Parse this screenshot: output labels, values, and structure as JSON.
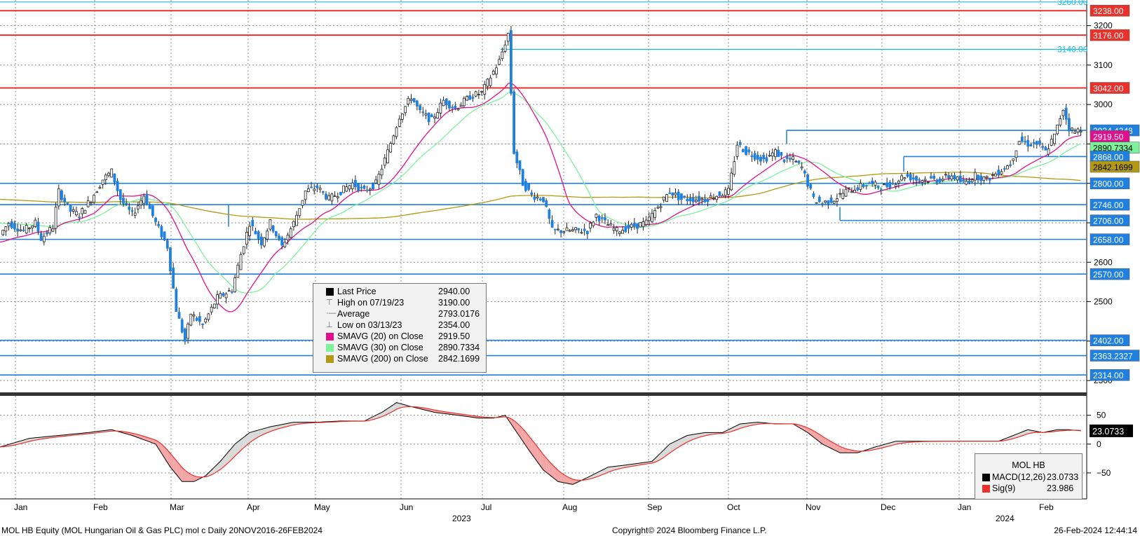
{
  "chart_data": [
    {
      "type": "candlestick",
      "title": "",
      "y_axis_ticks": [
        2300,
        2400,
        2500,
        2600,
        2700,
        2800,
        2900,
        3000,
        3100,
        3200
      ],
      "ylim": [
        2270,
        3265
      ],
      "x_labels": [
        "Jan",
        "Feb",
        "Mar",
        "Apr",
        "May",
        "Jun",
        "Jul",
        "Aug",
        "Sep",
        "Oct",
        "Nov",
        "Dec",
        "Jan",
        "Feb"
      ],
      "year_labels": [
        {
          "label": "2023",
          "after_month_index": 5
        },
        {
          "label": "2024",
          "after_month_index": 12
        }
      ],
      "horizontal_levels_red": [
        3238.0,
        3176.0,
        3042.0
      ],
      "horizontal_levels_blue": [
        2934.4348,
        2868.0,
        2800.0,
        2746.0,
        2706.0,
        2658.0,
        2570.0,
        2402.0,
        2363.2327,
        2314.0
      ],
      "cyan_levels": [
        {
          "value": 3260.0,
          "label": "3260.00"
        },
        {
          "value": 3140.0,
          "label": "3140.00"
        }
      ],
      "right_tags": [
        {
          "label": "3238.00",
          "value": 3238.0,
          "color": "#e8322b",
          "text_color": "#ffffff"
        },
        {
          "label": "3176.00",
          "value": 3176.0,
          "color": "#e8322b",
          "text_color": "#ffffff"
        },
        {
          "label": "3042.00",
          "value": 3042.0,
          "color": "#e8322b",
          "text_color": "#ffffff"
        },
        {
          "label": "2934.4348",
          "value": 2934.4348,
          "color": "#1f80e0",
          "text_color": "#ffffff"
        },
        {
          "label": "2919.50",
          "value": 2919.5,
          "color": "#e0108c",
          "text_color": "#ffffff"
        },
        {
          "label": "2890.7334",
          "value": 2890.7334,
          "color": "#7cf29a",
          "text_color": "#000000"
        },
        {
          "label": "2868.00",
          "value": 2868.0,
          "color": "#1f80e0",
          "text_color": "#ffffff"
        },
        {
          "label": "2842.1699",
          "value": 2842.1699,
          "color": "#b29a12",
          "text_color": "#000000"
        },
        {
          "label": "2800.00",
          "value": 2800.0,
          "color": "#1f80e0",
          "text_color": "#ffffff"
        },
        {
          "label": "2746.00",
          "value": 2746.0,
          "color": "#1f80e0",
          "text_color": "#ffffff"
        },
        {
          "label": "2706.00",
          "value": 2706.0,
          "color": "#1f80e0",
          "text_color": "#ffffff"
        },
        {
          "label": "2658.00",
          "value": 2658.0,
          "color": "#1f80e0",
          "text_color": "#ffffff"
        },
        {
          "label": "2570.00",
          "value": 2570.0,
          "color": "#1f80e0",
          "text_color": "#ffffff"
        },
        {
          "label": "2402.00",
          "value": 2402.0,
          "color": "#1f80e0",
          "text_color": "#ffffff"
        },
        {
          "label": "2363.2327",
          "value": 2363.2327,
          "color": "#1f80e0",
          "text_color": "#ffffff"
        },
        {
          "label": "2314.00",
          "value": 2314.0,
          "color": "#1f80e0",
          "text_color": "#ffffff"
        }
      ],
      "price_path": [
        [
          0,
          2670
        ],
        [
          3,
          2700
        ],
        [
          5,
          2690
        ],
        [
          8,
          2680
        ],
        [
          12,
          2700
        ],
        [
          14,
          2660
        ],
        [
          18,
          2690
        ],
        [
          20,
          2780
        ],
        [
          24,
          2730
        ],
        [
          27,
          2720
        ],
        [
          31,
          2760
        ],
        [
          35,
          2810
        ],
        [
          38,
          2830
        ],
        [
          41,
          2760
        ],
        [
          45,
          2720
        ],
        [
          49,
          2770
        ],
        [
          53,
          2700
        ],
        [
          57,
          2640
        ],
        [
          60,
          2480
        ],
        [
          63,
          2400
        ],
        [
          65,
          2470
        ],
        [
          69,
          2440
        ],
        [
          74,
          2510
        ],
        [
          79,
          2530
        ],
        [
          82,
          2620
        ],
        [
          85,
          2700
        ],
        [
          89,
          2650
        ],
        [
          92,
          2700
        ],
        [
          96,
          2640
        ],
        [
          100,
          2700
        ],
        [
          104,
          2780
        ],
        [
          108,
          2790
        ],
        [
          112,
          2760
        ],
        [
          116,
          2780
        ],
        [
          120,
          2800
        ],
        [
          124,
          2780
        ],
        [
          128,
          2800
        ],
        [
          132,
          2880
        ],
        [
          136,
          2970
        ],
        [
          140,
          3020
        ],
        [
          143,
          2980
        ],
        [
          147,
          2960
        ],
        [
          151,
          3010
        ],
        [
          155,
          2990
        ],
        [
          160,
          3020
        ],
        [
          164,
          3030
        ],
        [
          167,
          3070
        ],
        [
          170,
          3110
        ],
        [
          173,
          3180
        ],
        [
          175,
          2880
        ],
        [
          178,
          2800
        ],
        [
          181,
          2770
        ],
        [
          185,
          2760
        ],
        [
          188,
          2680
        ],
        [
          192,
          2680
        ],
        [
          196,
          2680
        ],
        [
          200,
          2680
        ],
        [
          203,
          2720
        ],
        [
          206,
          2700
        ],
        [
          210,
          2680
        ],
        [
          215,
          2690
        ],
        [
          220,
          2700
        ],
        [
          224,
          2740
        ],
        [
          228,
          2780
        ],
        [
          232,
          2760
        ],
        [
          236,
          2760
        ],
        [
          240,
          2760
        ],
        [
          244,
          2770
        ],
        [
          248,
          2780
        ],
        [
          251,
          2900
        ],
        [
          254,
          2880
        ],
        [
          257,
          2870
        ],
        [
          260,
          2860
        ],
        [
          264,
          2880
        ],
        [
          267,
          2860
        ],
        [
          270,
          2860
        ],
        [
          273,
          2840
        ],
        [
          277,
          2760
        ],
        [
          280,
          2750
        ],
        [
          284,
          2760
        ],
        [
          288,
          2780
        ],
        [
          292,
          2790
        ],
        [
          296,
          2800
        ],
        [
          300,
          2790
        ],
        [
          304,
          2800
        ],
        [
          308,
          2820
        ],
        [
          312,
          2810
        ],
        [
          316,
          2810
        ],
        [
          320,
          2810
        ],
        [
          324,
          2820
        ],
        [
          328,
          2800
        ],
        [
          332,
          2820
        ],
        [
          336,
          2810
        ],
        [
          340,
          2830
        ],
        [
          344,
          2850
        ],
        [
          347,
          2910
        ],
        [
          350,
          2900
        ],
        [
          353,
          2900
        ],
        [
          356,
          2880
        ],
        [
          359,
          2920
        ],
        [
          362,
          2990
        ],
        [
          364,
          2940
        ],
        [
          366,
          2930
        ],
        [
          368,
          2940
        ]
      ],
      "macd_axis_ticks": [
        50,
        0,
        -50
      ],
      "macd_ylim": [
        -95,
        80
      ],
      "macd_path": [
        [
          0,
          -5
        ],
        [
          10,
          10
        ],
        [
          20,
          15
        ],
        [
          30,
          20
        ],
        [
          38,
          25
        ],
        [
          45,
          15
        ],
        [
          53,
          0
        ],
        [
          58,
          -40
        ],
        [
          62,
          -65
        ],
        [
          66,
          -65
        ],
        [
          70,
          -55
        ],
        [
          75,
          -30
        ],
        [
          80,
          0
        ],
        [
          85,
          20
        ],
        [
          92,
          30
        ],
        [
          100,
          38
        ],
        [
          108,
          38
        ],
        [
          116,
          40
        ],
        [
          124,
          40
        ],
        [
          130,
          55
        ],
        [
          135,
          72
        ],
        [
          140,
          65
        ],
        [
          148,
          55
        ],
        [
          156,
          50
        ],
        [
          163,
          45
        ],
        [
          168,
          45
        ],
        [
          172,
          50
        ],
        [
          176,
          20
        ],
        [
          180,
          -10
        ],
        [
          185,
          -45
        ],
        [
          190,
          -65
        ],
        [
          195,
          -70
        ],
        [
          200,
          -58
        ],
        [
          207,
          -40
        ],
        [
          215,
          -35
        ],
        [
          222,
          -30
        ],
        [
          228,
          0
        ],
        [
          234,
          15
        ],
        [
          240,
          20
        ],
        [
          246,
          20
        ],
        [
          252,
          35
        ],
        [
          258,
          38
        ],
        [
          264,
          35
        ],
        [
          270,
          35
        ],
        [
          275,
          20
        ],
        [
          280,
          0
        ],
        [
          286,
          -15
        ],
        [
          292,
          -15
        ],
        [
          298,
          -5
        ],
        [
          305,
          5
        ],
        [
          312,
          5
        ],
        [
          320,
          5
        ],
        [
          326,
          5
        ],
        [
          333,
          5
        ],
        [
          340,
          5
        ],
        [
          345,
          15
        ],
        [
          350,
          25
        ],
        [
          355,
          20
        ],
        [
          360,
          25
        ],
        [
          364,
          25
        ],
        [
          368,
          23
        ]
      ],
      "legend": [
        {
          "label": "Last Price",
          "value": "2940.00",
          "swatch": "#000000"
        },
        {
          "label": "High on 07/19/23",
          "value": "3190.00",
          "swatch": ""
        },
        {
          "label": "Average",
          "value": "2793.0176",
          "swatch": ""
        },
        {
          "label": "Low on 03/13/23",
          "value": "2354.00",
          "swatch": ""
        },
        {
          "label": "SMAVG (20)  on Close",
          "value": "2919.50",
          "swatch": "#e0108c"
        },
        {
          "label": "SMAVG (30)  on Close",
          "value": "2890.7334",
          "swatch": "#7cf29a"
        },
        {
          "label": "SMAVG (200)  on Close",
          "value": "2842.1699",
          "swatch": "#b29a12"
        }
      ],
      "macd_legend": {
        "title": "MOL HB",
        "rows": [
          {
            "label": "MACD(12,26)",
            "value": "23.0733",
            "swatch": "#000000"
          },
          {
            "label": "Sig(9)",
            "value": "23.986",
            "swatch": "#e8322b"
          }
        ]
      },
      "macd_last_tag": "23.0733",
      "grid": true
    }
  ],
  "footer": {
    "left": "MOL HB Equity (MOL Hungarian Oil & Gas PLC) mol c  Daily 20NOV2016-26FEB2024",
    "center": "Copyright© 2024 Bloomberg Finance L.P.",
    "right": "26-Feb-2024 12:44:14"
  }
}
